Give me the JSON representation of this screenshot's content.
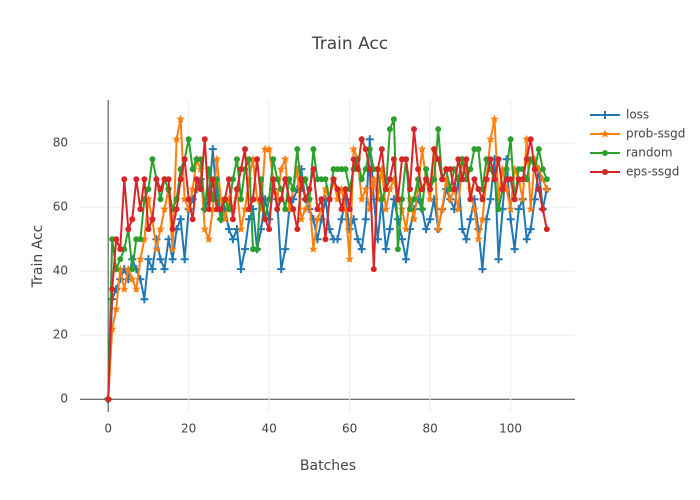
{
  "chart_data": {
    "type": "line",
    "title": "Train Acc",
    "x_label": "Batches",
    "y_label": "Train Acc",
    "x": [
      0,
      1,
      2,
      3,
      4,
      5,
      6,
      7,
      8,
      9,
      10,
      11,
      12,
      13,
      14,
      15,
      16,
      17,
      18,
      19,
      20,
      21,
      22,
      23,
      24,
      25,
      26,
      27,
      28,
      29,
      30,
      31,
      32,
      33,
      34,
      35,
      36,
      37,
      38,
      39,
      40,
      41,
      42,
      43,
      44,
      45,
      46,
      47,
      48,
      49,
      50,
      51,
      52,
      53,
      54,
      55,
      56,
      57,
      58,
      59,
      60,
      61,
      62,
      63,
      64,
      65,
      66,
      67,
      68,
      69,
      70,
      71,
      72,
      73,
      74,
      75,
      76,
      77,
      78,
      79,
      80,
      81,
      82,
      83,
      84,
      85,
      86,
      87,
      88,
      89,
      90,
      91,
      92,
      93,
      94,
      95,
      96,
      97,
      98,
      99,
      100,
      101,
      102,
      103,
      104,
      105,
      106,
      107,
      108,
      109
    ],
    "series": [
      {
        "name": "loss",
        "color": "#1f77b4",
        "marker": "cross",
        "values": [
          0,
          31.25,
          34.38,
          37.5,
          40.63,
          37.5,
          43.75,
          40.63,
          37.5,
          31.25,
          43.75,
          40.63,
          50,
          43.75,
          40.63,
          50,
          43.75,
          53.13,
          56.25,
          43.75,
          59.38,
          62.5,
          65.63,
          68.75,
          59.38,
          62.5,
          78.13,
          62.5,
          56.25,
          59.38,
          53.13,
          50,
          53.13,
          40.63,
          46.88,
          56.25,
          59.38,
          46.88,
          53.13,
          62.5,
          56.25,
          65.63,
          62.5,
          40.63,
          46.88,
          59.38,
          62.5,
          65.63,
          71.88,
          62.5,
          59.38,
          56.25,
          50,
          56.25,
          62.5,
          53.13,
          50,
          50,
          56.25,
          62.5,
          53.13,
          56.25,
          50,
          46.88,
          56.25,
          81.25,
          62.5,
          50,
          62.5,
          46.88,
          53.13,
          62.5,
          56.25,
          50,
          43.75,
          53.13,
          59.38,
          62.5,
          59.38,
          53.13,
          56.25,
          62.5,
          53.13,
          59.38,
          65.63,
          62.5,
          59.38,
          68.75,
          53.13,
          50,
          56.25,
          62.5,
          53.13,
          40.63,
          56.25,
          62.5,
          75,
          43.75,
          59.38,
          75,
          56.25,
          46.88,
          59.38,
          62.5,
          50,
          53.13,
          62.5,
          71.88,
          59.38,
          65.63
        ]
      },
      {
        "name": "prob-ssgd",
        "color": "#ff7f0e",
        "marker": "star",
        "values": [
          0,
          21.88,
          28.13,
          40.63,
          34.38,
          40.63,
          37.5,
          34.38,
          43.75,
          50,
          62.5,
          56.25,
          46.88,
          53.13,
          59.38,
          65.63,
          46.88,
          81.25,
          87.5,
          62.5,
          59.38,
          65.63,
          75,
          71.88,
          53.13,
          50,
          59.38,
          75,
          62.5,
          56.25,
          62.5,
          59.38,
          65.63,
          53.13,
          59.38,
          68.75,
          75,
          62.5,
          59.38,
          78.13,
          78.13,
          68.75,
          62.5,
          71.88,
          75,
          59.38,
          65.63,
          71.88,
          56.25,
          59.38,
          62.5,
          46.88,
          56.25,
          59.38,
          65.63,
          62.5,
          68.75,
          62.5,
          65.63,
          59.38,
          43.75,
          78.13,
          75,
          62.5,
          65.63,
          59.38,
          68.75,
          62.5,
          71.88,
          59.38,
          65.63,
          68.75,
          62.5,
          59.38,
          53.13,
          62.5,
          56.25,
          65.63,
          78.13,
          68.75,
          62.5,
          78.13,
          53.13,
          59.38,
          68.75,
          62.5,
          65.63,
          59.38,
          75,
          71.88,
          65.63,
          59.38,
          50,
          56.25,
          68.75,
          81.25,
          87.5,
          62.5,
          71.88,
          65.63,
          59.38,
          71.88,
          68.75,
          62.5,
          81.25,
          59.38,
          75,
          71.88,
          68.75,
          65.63
        ]
      },
      {
        "name": "random",
        "color": "#2ca02c",
        "marker": "circle",
        "values": [
          0,
          50,
          40.63,
          43.75,
          46.88,
          53.13,
          40.63,
          50,
          50,
          62.5,
          65.63,
          75,
          68.75,
          62.5,
          68.75,
          65.63,
          59.38,
          62.5,
          71.88,
          75,
          81.25,
          71.88,
          75,
          75,
          59.38,
          71.88,
          62.5,
          68.75,
          56.25,
          62.5,
          59.38,
          68.75,
          75,
          62.5,
          71.88,
          75,
          46.88,
          46.88,
          68.75,
          56.25,
          62.5,
          75,
          68.75,
          65.63,
          59.38,
          68.75,
          65.63,
          78.13,
          65.63,
          68.75,
          62.5,
          78.13,
          68.75,
          68.75,
          68.75,
          62.5,
          71.88,
          71.88,
          71.88,
          71.88,
          65.63,
          71.88,
          75,
          68.75,
          71.88,
          78.13,
          71.88,
          71.88,
          62.5,
          65.63,
          84.38,
          87.5,
          46.88,
          62.5,
          75,
          59.38,
          62.5,
          68.75,
          59.38,
          71.88,
          65.63,
          68.75,
          84.38,
          68.75,
          71.88,
          65.63,
          71.88,
          68.75,
          75,
          68.75,
          71.88,
          78.13,
          78.13,
          65.63,
          75,
          71.88,
          68.75,
          59.38,
          65.63,
          71.88,
          81.25,
          62.5,
          71.88,
          71.88,
          68.75,
          75,
          71.88,
          78.13,
          71.88,
          68.75
        ]
      },
      {
        "name": "eps-ssgd",
        "color": "#d62728",
        "marker": "circle",
        "values": [
          0,
          34.38,
          50,
          46.88,
          68.75,
          53.13,
          56.25,
          68.75,
          59.38,
          68.75,
          53.13,
          56.25,
          68.75,
          65.63,
          68.75,
          68.75,
          53.13,
          59.38,
          68.75,
          75,
          62.5,
          56.25,
          68.75,
          65.63,
          81.25,
          59.38,
          68.75,
          59.38,
          59.38,
          62.5,
          68.75,
          56.25,
          65.63,
          71.88,
          78.13,
          59.38,
          62.5,
          75,
          62.5,
          56.25,
          53.13,
          68.75,
          59.38,
          62.5,
          68.75,
          62.5,
          59.38,
          53.13,
          68.75,
          62.5,
          65.63,
          71.88,
          59.38,
          62.5,
          50,
          62.5,
          68.75,
          65.63,
          59.38,
          65.63,
          59.38,
          75,
          71.88,
          81.25,
          78.13,
          71.88,
          40.63,
          71.88,
          78.13,
          65.63,
          68.75,
          75,
          62.5,
          75,
          75,
          65.63,
          84.38,
          71.88,
          65.63,
          68.75,
          65.63,
          78.13,
          75,
          68.75,
          71.88,
          71.88,
          65.63,
          75,
          68.75,
          75,
          62.5,
          68.75,
          65.63,
          62.5,
          68.75,
          75,
          68.75,
          75,
          65.63,
          68.75,
          68.75,
          62.5,
          68.75,
          68.75,
          75,
          81.25,
          71.88,
          65.63,
          59.38,
          53.13
        ]
      }
    ],
    "xlim": [
      -7,
      116
    ],
    "ylim": [
      -4,
      93.5
    ],
    "xticks": [
      0,
      20,
      40,
      60,
      80,
      100
    ],
    "yticks": [
      0,
      20,
      40,
      60,
      80
    ],
    "grid": true,
    "legend_position": "top-right"
  }
}
